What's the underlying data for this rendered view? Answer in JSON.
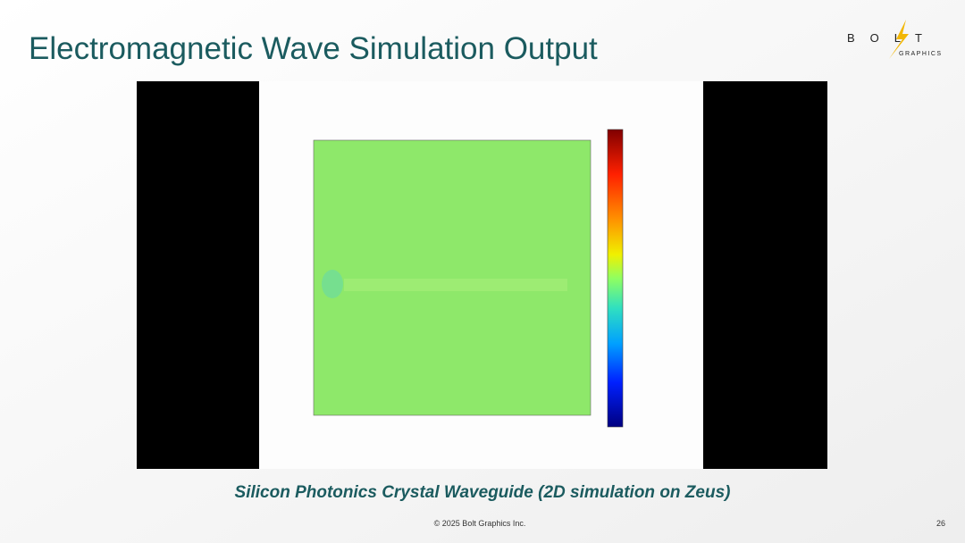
{
  "header": {
    "title": "Electromagnetic Wave Simulation Output"
  },
  "logo": {
    "wordmark": "BOLT",
    "tagline": "GRAPHICS"
  },
  "figure": {
    "caption": "Silicon Photonics Crystal Waveguide (2D simulation on Zeus)"
  },
  "footer": {
    "copyright": "© 2025 Bolt Graphics Inc.",
    "page": "26"
  }
}
